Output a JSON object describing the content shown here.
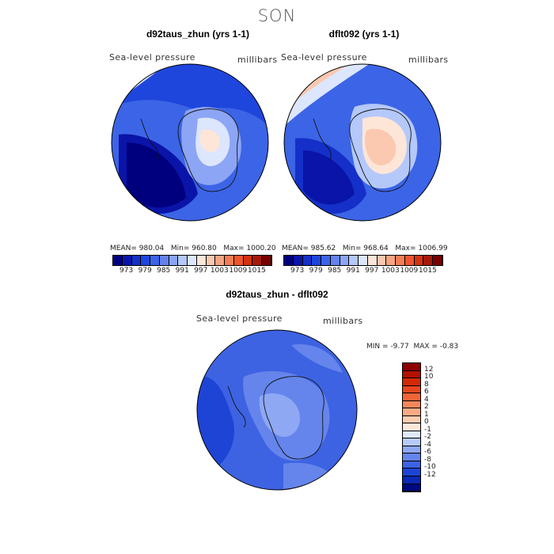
{
  "page": {
    "title": "SON"
  },
  "panels": [
    {
      "title": "d92taus_zhun (yrs 1-1)",
      "variable": "Sea-level pressure",
      "units": "millibars",
      "mean": "980.04",
      "min": "960.80",
      "max": "1000.20"
    },
    {
      "title": "dflt092 (yrs 1-1)",
      "variable": "Sea-level pressure",
      "units": "millibars",
      "mean": "985.62",
      "min": "968.64",
      "max": "1006.99"
    }
  ],
  "stat_labels": {
    "mean": "MEAN=",
    "min": "Min=",
    "max": "Max="
  },
  "top_colorbar": {
    "ticks": [
      "973",
      "979",
      "985",
      "991",
      "997",
      "1003",
      "1009",
      "1015"
    ],
    "colors": [
      "#00007f",
      "#0a14a8",
      "#1430c8",
      "#1e46dc",
      "#3c64e6",
      "#6482ee",
      "#8ca5f5",
      "#b4c8fa",
      "#dce6fd",
      "#fde6d8",
      "#fbc8b0",
      "#f7a580",
      "#f37d55",
      "#ed552d",
      "#d2320f",
      "#a5190a",
      "#780000"
    ]
  },
  "diff_panel": {
    "title": "d92taus_zhun - dflt092",
    "variable": "Sea-level pressure",
    "units": "millibars",
    "min_label": "MIN =",
    "min": "-9.77",
    "max_label": "MAX =",
    "max": "-0.83"
  },
  "diff_colorbar": {
    "ticks": [
      "12",
      "10",
      "8",
      "6",
      "4",
      "2",
      "1",
      "0",
      "-1",
      "-2",
      "-4",
      "-6",
      "-8",
      "-10",
      "-12"
    ],
    "colors": [
      "#8c0000",
      "#b41000",
      "#d22a08",
      "#e8461e",
      "#f06438",
      "#f5875a",
      "#f9aa85",
      "#fccdb0",
      "#fde9dc",
      "#dfe8fd",
      "#b7cbfa",
      "#8ea8f4",
      "#6585ec",
      "#3d63e2",
      "#1e44d6",
      "#0c28b4",
      "#00087f"
    ]
  },
  "colors": {
    "title": "#555555",
    "coast": "#111111"
  }
}
